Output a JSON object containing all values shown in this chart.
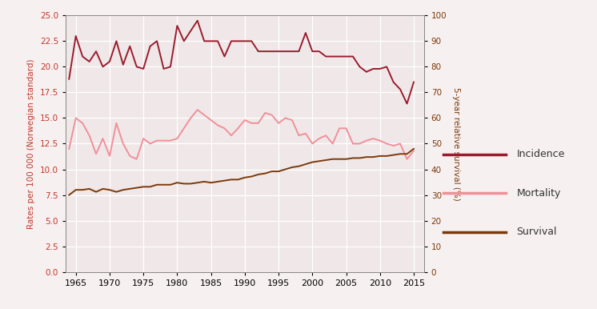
{
  "incidence_years": [
    1964,
    1965,
    1966,
    1967,
    1968,
    1969,
    1970,
    1971,
    1972,
    1973,
    1974,
    1975,
    1976,
    1977,
    1978,
    1979,
    1980,
    1981,
    1982,
    1983,
    1984,
    1985,
    1986,
    1987,
    1988,
    1989,
    1990,
    1991,
    1992,
    1993,
    1994,
    1995,
    1996,
    1997,
    1998,
    1999,
    2000,
    2001,
    2002,
    2003,
    2004,
    2005,
    2006,
    2007,
    2008,
    2009,
    2010,
    2011,
    2012,
    2013,
    2014,
    2015
  ],
  "incidence_values": [
    18.8,
    23.0,
    21.0,
    20.5,
    21.5,
    20.0,
    20.5,
    22.5,
    20.2,
    22.0,
    20.0,
    19.8,
    22.0,
    22.5,
    19.8,
    20.0,
    24.0,
    22.5,
    23.5,
    24.5,
    22.5,
    22.5,
    22.5,
    21.0,
    22.5,
    22.5,
    22.5,
    22.5,
    21.5,
    21.5,
    21.5,
    21.5,
    21.5,
    21.5,
    21.5,
    23.3,
    21.5,
    21.5,
    21.0,
    21.0,
    21.0,
    21.0,
    21.0,
    20.0,
    19.5,
    19.8,
    19.8,
    20.0,
    18.5,
    17.8,
    16.4,
    18.5
  ],
  "mortality_years": [
    1964,
    1965,
    1966,
    1967,
    1968,
    1969,
    1970,
    1971,
    1972,
    1973,
    1974,
    1975,
    1976,
    1977,
    1978,
    1979,
    1980,
    1981,
    1982,
    1983,
    1984,
    1985,
    1986,
    1987,
    1988,
    1989,
    1990,
    1991,
    1992,
    1993,
    1994,
    1995,
    1996,
    1997,
    1998,
    1999,
    2000,
    2001,
    2002,
    2003,
    2004,
    2005,
    2006,
    2007,
    2008,
    2009,
    2010,
    2011,
    2012,
    2013,
    2014,
    2015
  ],
  "mortality_values": [
    12.0,
    15.0,
    14.5,
    13.3,
    11.5,
    13.0,
    11.3,
    14.5,
    12.5,
    11.3,
    11.0,
    13.0,
    12.5,
    12.8,
    12.8,
    12.8,
    13.0,
    14.0,
    15.0,
    15.8,
    15.3,
    14.8,
    14.3,
    14.0,
    13.3,
    14.0,
    14.8,
    14.5,
    14.5,
    15.5,
    15.3,
    14.5,
    15.0,
    14.8,
    13.3,
    13.5,
    12.5,
    13.0,
    13.3,
    12.5,
    14.0,
    14.0,
    12.5,
    12.5,
    12.8,
    13.0,
    12.8,
    12.5,
    12.3,
    12.5,
    11.0,
    11.8
  ],
  "survival_years": [
    1964,
    1965,
    1966,
    1967,
    1968,
    1969,
    1970,
    1971,
    1972,
    1973,
    1974,
    1975,
    1976,
    1977,
    1978,
    1979,
    1980,
    1981,
    1982,
    1983,
    1984,
    1985,
    1986,
    1987,
    1988,
    1989,
    1990,
    1991,
    1992,
    1993,
    1994,
    1995,
    1996,
    1997,
    1998,
    1999,
    2000,
    2001,
    2002,
    2003,
    2004,
    2005,
    2006,
    2007,
    2008,
    2009,
    2010,
    2011,
    2012,
    2013,
    2014,
    2015
  ],
  "survival_pct": [
    30.0,
    32.0,
    32.0,
    32.4,
    31.2,
    32.4,
    32.0,
    31.2,
    32.0,
    32.4,
    32.8,
    33.2,
    33.2,
    34.0,
    34.0,
    34.0,
    34.8,
    34.4,
    34.4,
    34.8,
    35.2,
    34.8,
    35.2,
    35.6,
    36.0,
    36.0,
    36.8,
    37.2,
    38.0,
    38.4,
    39.2,
    39.2,
    40.0,
    40.8,
    41.2,
    42.0,
    42.8,
    43.2,
    43.6,
    44.0,
    44.0,
    44.0,
    44.4,
    44.4,
    44.8,
    44.8,
    45.2,
    45.2,
    45.6,
    46.0,
    46.0,
    48.0
  ],
  "incidence_color": "#9b1c2e",
  "mortality_color": "#f0909a",
  "survival_color": "#7b3a0a",
  "left_tick_color": "#c0392b",
  "right_tick_color": "#7b3a0a",
  "ylabel_left": "Rates per 100 000 (Norwegian standard)",
  "ylabel_right": "5-year relative survival (%)",
  "ylim_left": [
    0,
    25
  ],
  "ylim_right": [
    0,
    100
  ],
  "xlim": [
    1963.5,
    2016.5
  ],
  "xticks": [
    1965,
    1970,
    1975,
    1980,
    1985,
    1990,
    1995,
    2000,
    2005,
    2010,
    2015
  ],
  "yticks_left": [
    0.0,
    2.5,
    5.0,
    7.5,
    10.0,
    12.5,
    15.0,
    17.5,
    20.0,
    22.5,
    25.0
  ],
  "yticks_right": [
    0,
    10,
    20,
    30,
    40,
    50,
    60,
    70,
    80,
    90,
    100
  ],
  "legend_labels": [
    "Incidence",
    "Mortality",
    "Survival"
  ],
  "legend_colors": [
    "#9b1c2e",
    "#f0909a",
    "#7b3a0a"
  ],
  "background_color": "#f7f0f0",
  "plot_bg_color": "#f0e8e8",
  "grid_color": "#ffffff",
  "linewidth": 1.4
}
